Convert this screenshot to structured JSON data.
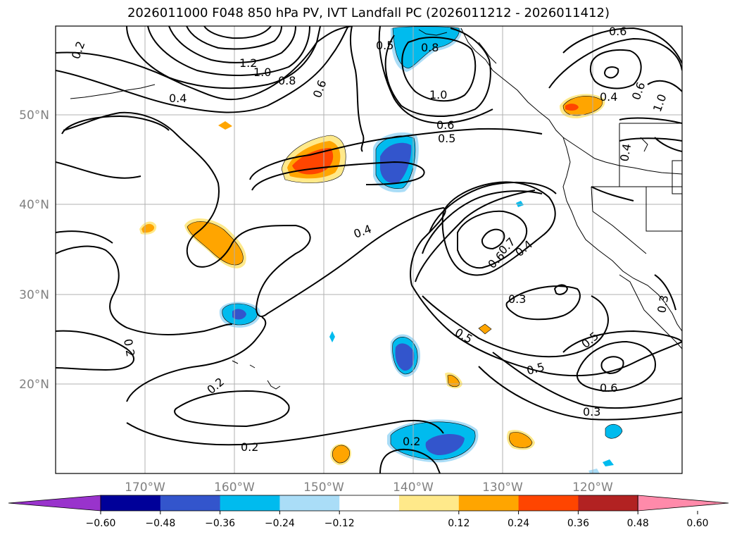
{
  "title": "2026011000 F048 850 hPa PV, IVT Landfall PC (2026011212 - 2026011412)",
  "map": {
    "lon_ticks": [
      "170°W",
      "160°W",
      "150°W",
      "140°W",
      "130°W",
      "120°W"
    ],
    "lat_ticks": [
      "50°N",
      "40°N",
      "30°N",
      "20°N"
    ],
    "contour_labels": [
      "0.2",
      "1.2",
      "1.0",
      "0.8",
      "0.6",
      "0.4",
      "0.5",
      "0.8",
      "1.0",
      "0.6",
      "0.5",
      "0.6",
      "0.4",
      "0.6",
      "1.0",
      "0.4",
      "0.4",
      "0.6",
      "0.7",
      "0.4",
      "0.3",
      "0.5",
      "0.5",
      "0.5",
      "0.6",
      "0.3",
      "0.2",
      "0.2",
      "0.2",
      "0.2",
      "0.3"
    ]
  },
  "colorbar": {
    "ticks": [
      "−0.60",
      "−0.48",
      "−0.36",
      "−0.24",
      "−0.12",
      "0.12",
      "0.24",
      "0.36",
      "0.48",
      "0.60"
    ],
    "colors": [
      "#9933cc",
      "#000099",
      "#3355cc",
      "#00bbee",
      "#aaddf7",
      "#ffffff",
      "#ffe98a",
      "#ffa500",
      "#ff4500",
      "#b22222",
      "#ff8aaa"
    ]
  }
}
